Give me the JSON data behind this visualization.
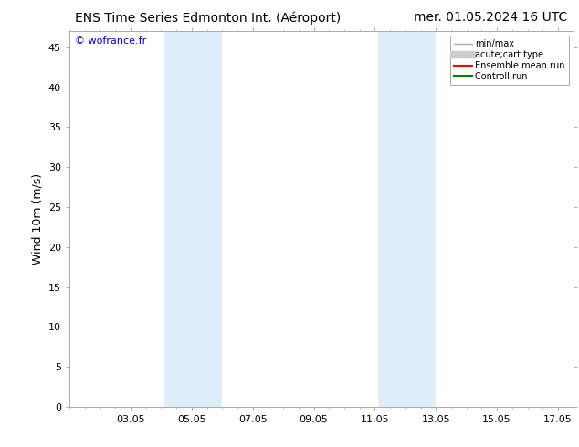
{
  "title_left": "ENS Time Series Edmonton Int. (Aéroport)",
  "title_right": "mer. 01.05.2024 16 UTC",
  "ylabel": "Wind 10m (m/s)",
  "watermark": "© wofrance.fr",
  "ylim": [
    0,
    47
  ],
  "yticks": [
    0,
    5,
    10,
    15,
    20,
    25,
    30,
    35,
    40,
    45
  ],
  "xlim": [
    1.0,
    17.0
  ],
  "xtick_labels": [
    "03.05",
    "05.05",
    "07.05",
    "09.05",
    "11.05",
    "13.05",
    "15.05",
    "17.05"
  ],
  "xtick_positions": [
    3,
    5,
    7,
    9,
    11,
    13,
    15,
    17
  ],
  "shaded_bands": [
    {
      "x_start": 4.1,
      "x_end": 6.0,
      "color": "#ddeef9"
    },
    {
      "x_start": 11.1,
      "x_end": 13.0,
      "color": "#ddeef9"
    }
  ],
  "legend_entries": [
    {
      "label": "min/max",
      "color": "#aaaaaa",
      "lw": 1.0,
      "ls": "-",
      "type": "line"
    },
    {
      "label": "acute;cart type",
      "color": "#cccccc",
      "lw": 6,
      "ls": "-",
      "type": "line"
    },
    {
      "label": "Ensemble mean run",
      "color": "red",
      "lw": 1.5,
      "ls": "-",
      "type": "line"
    },
    {
      "label": "Controll run",
      "color": "green",
      "lw": 1.5,
      "ls": "-",
      "type": "line"
    }
  ],
  "background_color": "#ffffff",
  "spine_color": "#aaaaaa",
  "tick_color": "#555555",
  "title_fontsize": 10,
  "axis_fontsize": 8,
  "watermark_color": "#0000cc",
  "watermark_fontsize": 8
}
